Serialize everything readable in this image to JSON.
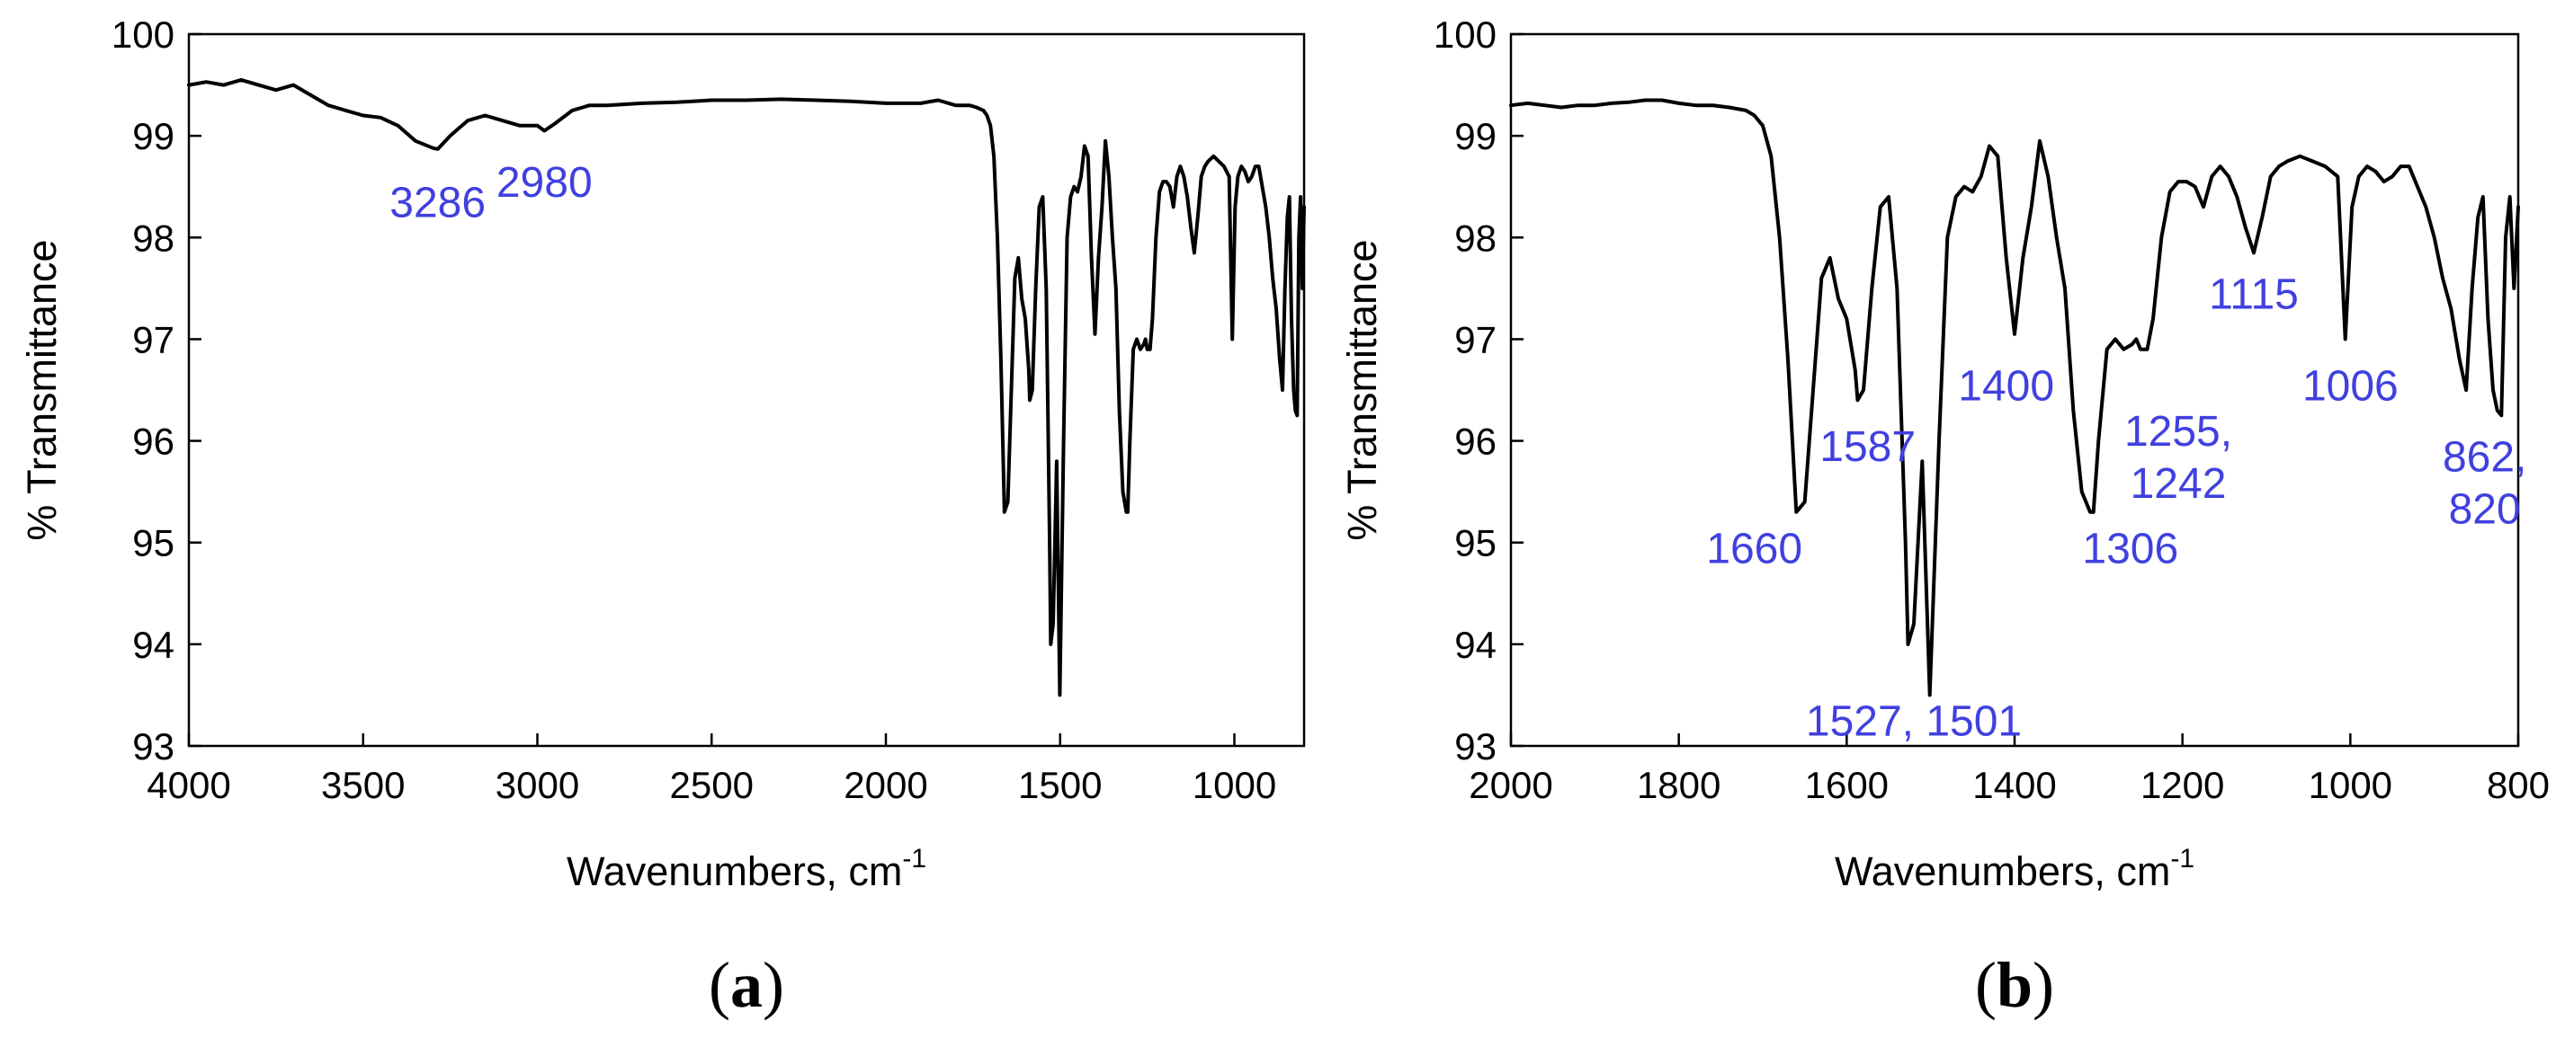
{
  "chart_data": [
    {
      "type": "line",
      "panel_label": {
        "open": "(",
        "letter": "a",
        "close": ")"
      },
      "xlabel": "Wavenumbers, cm",
      "xlabel_superscript": "-1",
      "ylabel": "% Transmittance",
      "xlim": [
        4000,
        800
      ],
      "ylim": [
        93,
        100
      ],
      "x_reversed": true,
      "grid": false,
      "x_ticks": [
        4000,
        3500,
        3000,
        2500,
        2000,
        1500,
        1000
      ],
      "y_ticks": [
        93,
        94,
        95,
        96,
        97,
        98,
        99,
        100
      ],
      "line_color": "#000000",
      "annotation_color": "#4040e0",
      "series": [
        {
          "x": [
            4000,
            3950,
            3900,
            3850,
            3800,
            3750,
            3700,
            3650,
            3600,
            3550,
            3500,
            3450,
            3400,
            3350,
            3300,
            3286,
            3250,
            3200,
            3150,
            3100,
            3050,
            3000,
            2980,
            2950,
            2900,
            2850,
            2800,
            2700,
            2600,
            2500,
            2400,
            2300,
            2200,
            2100,
            2000,
            1900,
            1850,
            1800,
            1760,
            1740,
            1720,
            1710,
            1700,
            1690,
            1680,
            1670,
            1660,
            1650,
            1640,
            1630,
            1620,
            1610,
            1600,
            1590,
            1587,
            1580,
            1570,
            1560,
            1550,
            1540,
            1530,
            1527,
            1520,
            1510,
            1501,
            1490,
            1480,
            1470,
            1460,
            1450,
            1440,
            1430,
            1420,
            1410,
            1400,
            1390,
            1380,
            1370,
            1360,
            1350,
            1340,
            1330,
            1320,
            1310,
            1306,
            1300,
            1290,
            1280,
            1270,
            1260,
            1255,
            1250,
            1242,
            1235,
            1225,
            1215,
            1205,
            1195,
            1185,
            1175,
            1165,
            1155,
            1145,
            1135,
            1125,
            1115,
            1105,
            1095,
            1085,
            1075,
            1060,
            1045,
            1030,
            1015,
            1006,
            998,
            990,
            980,
            970,
            960,
            950,
            940,
            930,
            920,
            910,
            900,
            890,
            880,
            870,
            862,
            855,
            848,
            842,
            836,
            830,
            825,
            820,
            815,
            810,
            805,
            800
          ],
          "y": [
            99.5,
            99.53,
            99.5,
            99.55,
            99.5,
            99.45,
            99.5,
            99.4,
            99.3,
            99.25,
            99.2,
            99.18,
            99.1,
            98.95,
            98.88,
            98.87,
            99.0,
            99.15,
            99.2,
            99.15,
            99.1,
            99.1,
            99.05,
            99.12,
            99.25,
            99.3,
            99.3,
            99.32,
            99.33,
            99.35,
            99.35,
            99.36,
            99.35,
            99.34,
            99.32,
            99.32,
            99.35,
            99.3,
            99.3,
            99.28,
            99.25,
            99.2,
            99.1,
            98.8,
            98.0,
            96.8,
            95.3,
            95.4,
            96.5,
            97.6,
            97.8,
            97.4,
            97.2,
            96.7,
            96.4,
            96.5,
            97.5,
            98.3,
            98.4,
            97.5,
            95.0,
            94.0,
            94.2,
            95.8,
            93.5,
            96.0,
            98.0,
            98.4,
            98.5,
            98.45,
            98.6,
            98.9,
            98.8,
            97.8,
            97.05,
            97.8,
            98.3,
            98.95,
            98.6,
            98.0,
            97.5,
            96.3,
            95.5,
            95.3,
            95.3,
            96.0,
            96.9,
            97.0,
            96.9,
            96.95,
            97.0,
            96.9,
            96.9,
            97.2,
            98.0,
            98.45,
            98.55,
            98.55,
            98.5,
            98.3,
            98.6,
            98.7,
            98.6,
            98.4,
            98.1,
            97.85,
            98.2,
            98.6,
            98.7,
            98.75,
            98.8,
            98.75,
            98.7,
            98.6,
            97.0,
            98.3,
            98.6,
            98.7,
            98.65,
            98.55,
            98.6,
            98.7,
            98.7,
            98.5,
            98.3,
            98.0,
            97.6,
            97.3,
            96.8,
            96.5,
            97.5,
            98.2,
            98.4,
            97.2,
            96.5,
            96.3,
            96.25,
            98.0,
            98.4,
            97.5,
            98.3
          ]
        }
      ],
      "annotations": [
        {
          "lines": [
            "3286"
          ],
          "x": 3286,
          "y": 98.2
        },
        {
          "lines": [
            "2980"
          ],
          "x": 2980,
          "y": 98.4
        }
      ]
    },
    {
      "type": "line",
      "panel_label": {
        "open": "(",
        "letter": "b",
        "close": ")"
      },
      "xlabel": "Wavenumbers, cm",
      "xlabel_superscript": "-1",
      "ylabel": "% Transmittance",
      "xlim": [
        2000,
        800
      ],
      "ylim": [
        93,
        100
      ],
      "x_reversed": true,
      "grid": false,
      "x_ticks": [
        2000,
        1800,
        1600,
        1400,
        1200,
        1000,
        800
      ],
      "y_ticks": [
        93,
        94,
        95,
        96,
        97,
        98,
        99,
        100
      ],
      "line_color": "#000000",
      "annotation_color": "#4040e0",
      "series": [
        {
          "x": [
            2000,
            1980,
            1960,
            1940,
            1920,
            1900,
            1880,
            1860,
            1840,
            1820,
            1800,
            1780,
            1760,
            1740,
            1720,
            1710,
            1700,
            1690,
            1680,
            1670,
            1660,
            1650,
            1640,
            1630,
            1620,
            1610,
            1600,
            1590,
            1587,
            1580,
            1570,
            1560,
            1550,
            1540,
            1530,
            1527,
            1520,
            1510,
            1501,
            1490,
            1480,
            1470,
            1460,
            1450,
            1440,
            1430,
            1420,
            1410,
            1400,
            1390,
            1380,
            1370,
            1360,
            1350,
            1340,
            1330,
            1320,
            1310,
            1306,
            1300,
            1290,
            1280,
            1270,
            1260,
            1255,
            1250,
            1242,
            1235,
            1225,
            1215,
            1205,
            1195,
            1185,
            1175,
            1165,
            1155,
            1145,
            1135,
            1125,
            1115,
            1105,
            1095,
            1085,
            1075,
            1060,
            1045,
            1030,
            1015,
            1006,
            998,
            990,
            980,
            970,
            960,
            950,
            940,
            930,
            920,
            910,
            900,
            890,
            880,
            870,
            862,
            855,
            848,
            842,
            836,
            830,
            825,
            820,
            815,
            810,
            805,
            800
          ],
          "y": [
            99.3,
            99.32,
            99.3,
            99.28,
            99.3,
            99.3,
            99.32,
            99.33,
            99.35,
            99.35,
            99.32,
            99.3,
            99.3,
            99.28,
            99.25,
            99.2,
            99.1,
            98.8,
            98.0,
            96.8,
            95.3,
            95.4,
            96.5,
            97.6,
            97.8,
            97.4,
            97.2,
            96.7,
            96.4,
            96.5,
            97.5,
            98.3,
            98.4,
            97.5,
            95.0,
            94.0,
            94.2,
            95.8,
            93.5,
            96.0,
            98.0,
            98.4,
            98.5,
            98.45,
            98.6,
            98.9,
            98.8,
            97.8,
            97.05,
            97.8,
            98.3,
            98.95,
            98.6,
            98.0,
            97.5,
            96.3,
            95.5,
            95.3,
            95.3,
            96.0,
            96.9,
            97.0,
            96.9,
            96.95,
            97.0,
            96.9,
            96.9,
            97.2,
            98.0,
            98.45,
            98.55,
            98.55,
            98.5,
            98.3,
            98.6,
            98.7,
            98.6,
            98.4,
            98.1,
            97.85,
            98.2,
            98.6,
            98.7,
            98.75,
            98.8,
            98.75,
            98.7,
            98.6,
            97.0,
            98.3,
            98.6,
            98.7,
            98.65,
            98.55,
            98.6,
            98.7,
            98.7,
            98.5,
            98.3,
            98.0,
            97.6,
            97.3,
            96.8,
            96.5,
            97.5,
            98.2,
            98.4,
            97.2,
            96.5,
            96.3,
            96.25,
            98.0,
            98.4,
            97.5,
            98.3
          ]
        }
      ],
      "annotations": [
        {
          "lines": [
            "1660"
          ],
          "x": 1710,
          "y": 94.8
        },
        {
          "lines": [
            "1587"
          ],
          "x": 1575,
          "y": 95.8
        },
        {
          "lines": [
            "1527, 1501"
          ],
          "x": 1520,
          "y": 93.1
        },
        {
          "lines": [
            "1400"
          ],
          "x": 1410,
          "y": 96.4
        },
        {
          "lines": [
            "1306"
          ],
          "x": 1262,
          "y": 94.8
        },
        {
          "lines": [
            "1255,",
            "1242"
          ],
          "x": 1205,
          "y": 95.95
        },
        {
          "lines": [
            "1115"
          ],
          "x": 1115,
          "y": 97.3
        },
        {
          "lines": [
            "1006"
          ],
          "x": 1000,
          "y": 96.4
        },
        {
          "lines": [
            "862,",
            "820"
          ],
          "x": 840,
          "y": 95.7
        }
      ]
    }
  ]
}
